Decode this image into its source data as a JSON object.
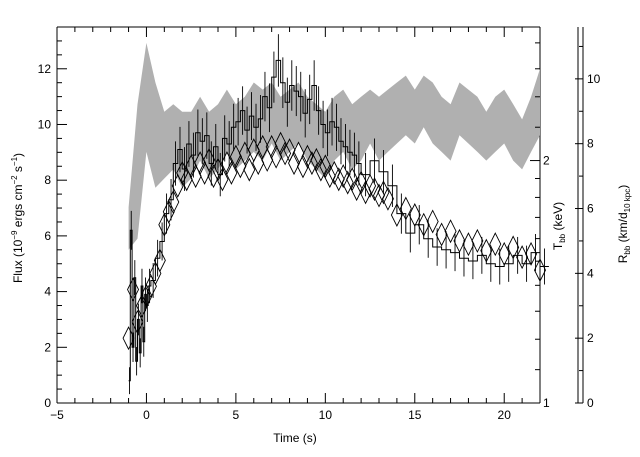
{
  "chart_data": {
    "type": "line",
    "xlabel": "Time (s)",
    "ylabel": {
      "main": "Flux (10",
      "exp1": "−9",
      "mid": " ergs cm",
      "exp2": "−2",
      "mid2": " s",
      "exp3": "−1",
      "close": ")"
    },
    "t_axis": {
      "main": "T",
      "sub": "bb",
      "rest": " (keV)",
      "ticks": [
        "2",
        "1"
      ]
    },
    "r_axis": {
      "main": "R",
      "sub": "bb",
      "rest1": " (km/d",
      "sub2": "10 kpc",
      "rest2": ")",
      "ticks": [
        "0",
        "2",
        "4",
        "6",
        "8",
        "10"
      ]
    },
    "xlim": [
      -5,
      22
    ],
    "ylim": [
      0,
      13.5
    ],
    "x_ticks": [
      "−5",
      "0",
      "5",
      "10",
      "15",
      "20"
    ],
    "y_ticks": [
      "0",
      "2",
      "4",
      "6",
      "8",
      "10",
      "12"
    ],
    "right_axis_ranges": {
      "T_bb_keV_log": [
        1,
        2.93
      ],
      "R_bb": [
        0,
        11.6
      ]
    },
    "series": [
      {
        "kind": "flux_histogram",
        "x": [
          -1.0,
          -0.9,
          -0.8,
          -0.7,
          -0.6,
          -0.5,
          -0.4,
          -0.3,
          -0.2,
          -0.1,
          0.0,
          0.1,
          0.25,
          0.5,
          0.75,
          1.0,
          1.25,
          1.5,
          1.75,
          2.0,
          2.25,
          2.5,
          2.75,
          3.0,
          3.25,
          3.5,
          3.75,
          4.0,
          4.25,
          4.5,
          4.75,
          5.0,
          5.25,
          5.5,
          5.75,
          6.0,
          6.25,
          6.5,
          6.75,
          7.0,
          7.25,
          7.5,
          7.75,
          8.0,
          8.25,
          8.5,
          8.75,
          9.0,
          9.25,
          9.5,
          9.75,
          10.0,
          10.25,
          10.5,
          10.75,
          11.0,
          11.25,
          11.5,
          11.75,
          12.0,
          12.5,
          13.0,
          13.5,
          14.0,
          14.5,
          15.0,
          15.5,
          16.0,
          16.5,
          17.0,
          17.5,
          18.0,
          18.5,
          19.0,
          19.5,
          20.0,
          20.5,
          21.0,
          21.5,
          22.0
        ],
        "values": [
          0.8,
          6.2,
          2.0,
          4.5,
          1.5,
          3.0,
          1.8,
          4.2,
          2.2,
          3.9,
          3.5,
          4.2,
          4.4,
          5.2,
          5.8,
          6.8,
          7.3,
          8.6,
          9.1,
          8.4,
          9.3,
          8.9,
          9.7,
          9.4,
          9.6,
          8.6,
          9.2,
          8.2,
          9.5,
          9.3,
          9.9,
          10.1,
          10.5,
          9.8,
          10.3,
          9.9,
          10.2,
          11.0,
          10.6,
          11.7,
          12.3,
          11.5,
          10.8,
          11.4,
          11.2,
          11.0,
          10.4,
          10.9,
          11.4,
          10.5,
          10.0,
          9.7,
          10.1,
          9.9,
          9.4,
          9.2,
          9.0,
          8.9,
          8.6,
          8.2,
          8.7,
          8.3,
          7.8,
          6.8,
          6.1,
          6.4,
          5.9,
          5.6,
          5.5,
          5.4,
          5.2,
          5.1,
          5.3,
          5.0,
          4.9,
          5.0,
          5.3,
          5.0,
          5.4,
          4.9
        ]
      },
      {
        "kind": "kT_band_keV",
        "x": [
          -1.0,
          -0.5,
          0.0,
          0.5,
          1.0,
          1.5,
          2.0,
          2.5,
          3.0,
          3.5,
          4.0,
          4.5,
          5.0,
          5.5,
          6.0,
          6.5,
          7.0,
          7.5,
          8.0,
          8.5,
          9.0,
          9.5,
          10.0,
          10.5,
          11.0,
          11.5,
          12.0,
          12.5,
          13.0,
          13.5,
          14.0,
          14.5,
          15.0,
          15.5,
          16.0,
          16.5,
          17.0,
          17.5,
          18.0,
          18.5,
          19.0,
          19.5,
          20.0,
          20.5,
          21.0,
          21.5,
          22.0
        ],
        "low": [
          1.55,
          1.6,
          2.05,
          1.85,
          1.9,
          1.95,
          1.85,
          1.9,
          2.0,
          1.9,
          1.95,
          2.05,
          1.95,
          2.0,
          2.05,
          2.0,
          2.1,
          2.0,
          2.05,
          2.1,
          2.0,
          1.95,
          1.9,
          2.0,
          2.05,
          1.95,
          2.0,
          2.1,
          2.0,
          2.05,
          2.1,
          2.15,
          2.1,
          2.2,
          2.1,
          2.05,
          2.0,
          2.15,
          2.1,
          2.05,
          2.0,
          2.05,
          2.1,
          2.0,
          1.95,
          2.05,
          2.15
        ],
        "high": [
          1.75,
          2.35,
          2.8,
          2.5,
          2.3,
          2.35,
          2.3,
          2.3,
          2.4,
          2.3,
          2.35,
          2.45,
          2.35,
          2.4,
          2.5,
          2.45,
          2.5,
          2.4,
          2.45,
          2.5,
          2.4,
          2.35,
          2.3,
          2.4,
          2.45,
          2.35,
          2.4,
          2.45,
          2.4,
          2.45,
          2.5,
          2.55,
          2.45,
          2.55,
          2.5,
          2.4,
          2.35,
          2.5,
          2.45,
          2.4,
          2.3,
          2.4,
          2.45,
          2.35,
          2.25,
          2.4,
          2.6
        ]
      },
      {
        "kind": "R_bb_diamonds",
        "x": [
          -1.0,
          -0.75,
          -0.5,
          -0.25,
          0.0,
          0.25,
          0.5,
          0.75,
          1.0,
          1.25,
          1.5,
          1.75,
          2.0,
          2.25,
          2.5,
          2.75,
          3.0,
          3.25,
          3.5,
          3.75,
          4.0,
          4.25,
          4.5,
          4.75,
          5.0,
          5.25,
          5.5,
          5.75,
          6.0,
          6.25,
          6.5,
          6.75,
          7.0,
          7.25,
          7.5,
          7.75,
          8.0,
          8.25,
          8.5,
          8.75,
          9.0,
          9.25,
          9.5,
          9.75,
          10.0,
          10.25,
          10.5,
          10.75,
          11.0,
          11.25,
          11.5,
          11.75,
          12.0,
          12.25,
          12.5,
          12.75,
          13.0,
          13.25,
          13.5,
          14.0,
          14.5,
          15.0,
          15.5,
          16.0,
          16.5,
          17.0,
          17.5,
          18.0,
          18.5,
          19.0,
          19.5,
          20.0,
          20.5,
          21.0,
          21.5,
          22.0
        ],
        "values": [
          2.0,
          3.5,
          2.5,
          3.0,
          3.3,
          3.6,
          4.0,
          4.4,
          5.5,
          5.9,
          6.2,
          6.7,
          7.1,
          6.9,
          7.3,
          7.0,
          7.4,
          7.1,
          7.5,
          7.0,
          7.2,
          6.9,
          7.4,
          7.1,
          7.6,
          7.3,
          7.7,
          7.2,
          7.8,
          7.4,
          7.9,
          7.5,
          7.9,
          7.6,
          8.0,
          7.7,
          7.8,
          7.4,
          7.7,
          7.3,
          7.6,
          7.4,
          7.5,
          7.2,
          7.3,
          7.0,
          7.1,
          6.9,
          7.0,
          6.8,
          6.9,
          6.6,
          6.8,
          6.5,
          6.7,
          6.6,
          6.4,
          6.5,
          6.3,
          5.8,
          6.0,
          5.8,
          5.5,
          5.6,
          5.2,
          5.3,
          5.0,
          4.9,
          5.0,
          4.7,
          4.9,
          4.6,
          4.8,
          4.5,
          4.6,
          4.1
        ]
      }
    ]
  }
}
